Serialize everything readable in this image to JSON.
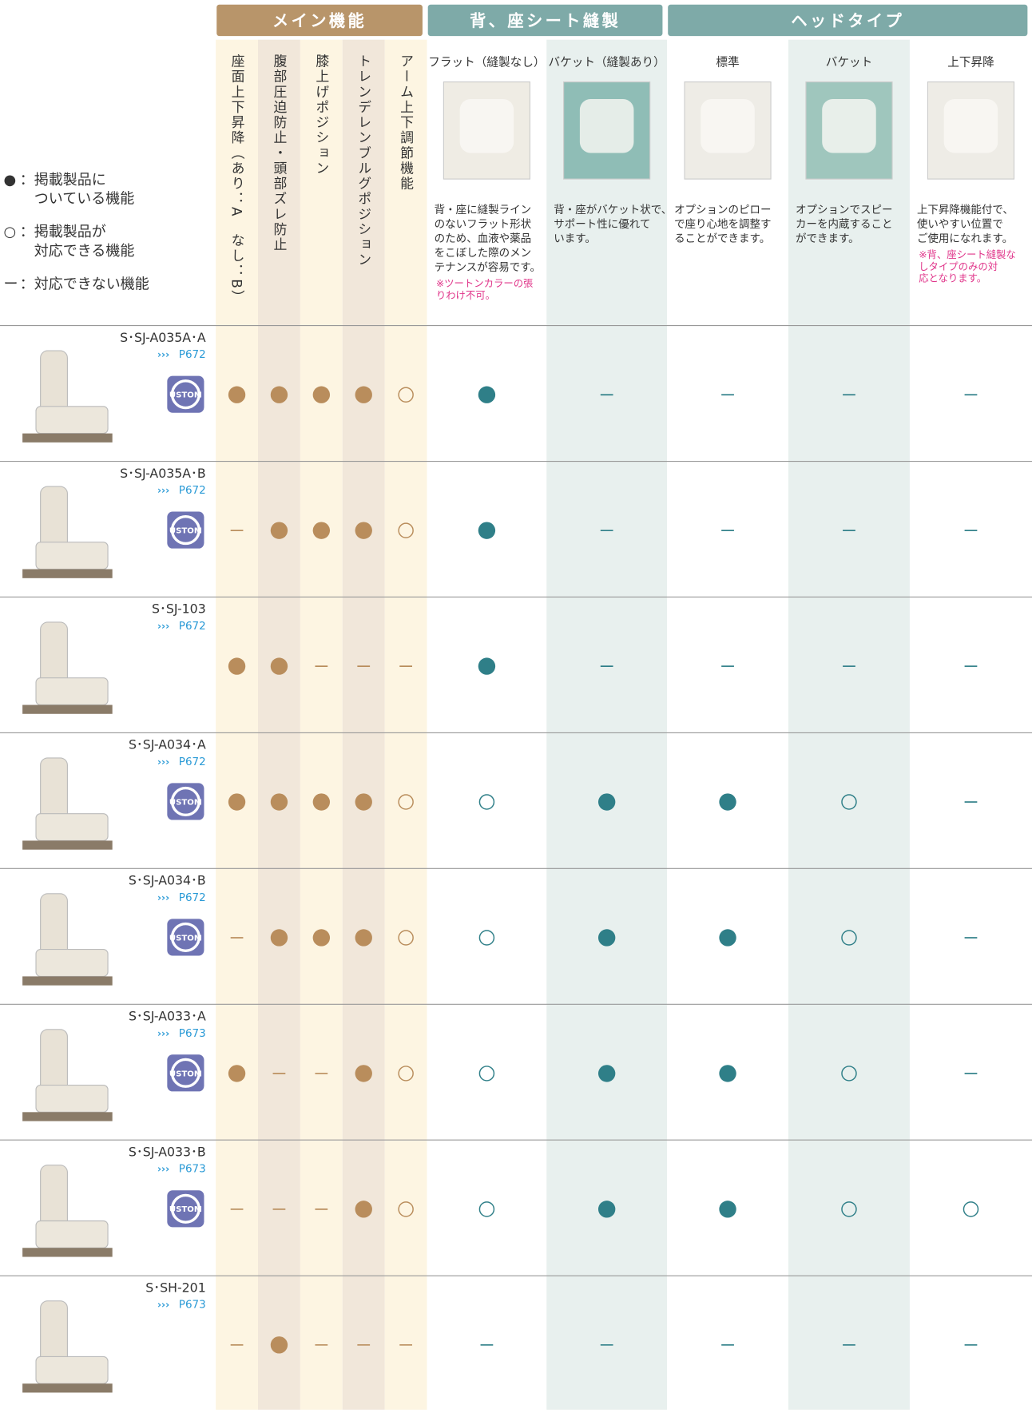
{
  "groups": [
    {
      "label": "メイン機能",
      "columns": [
        {
          "label": "座面上下昇降（あり：A　なし：B）"
        },
        {
          "label": "腹部圧迫防止・頭部ズレ防止"
        },
        {
          "label": "膝上げポジション"
        },
        {
          "label": "トレンデレンブルグポジション"
        },
        {
          "label": "アーム上下調節機能"
        }
      ]
    },
    {
      "label": "背、座シート縫製",
      "columns": [
        {
          "label": "フラット（縫製なし）",
          "description": [
            "背・座に縫製ライン",
            "のないフラット形状",
            "のため、血液や薬品",
            "をこぼした際のメン",
            "テナンスが容易です。"
          ],
          "note": [
            "※ツートンカラーの張",
            "りわけ不可。"
          ]
        },
        {
          "label": "バケット（縫製あり）",
          "description": [
            "背・座がバケット状で、",
            "サポート性に優れて",
            "います。"
          ]
        }
      ]
    },
    {
      "label": "ヘッドタイプ",
      "columns": [
        {
          "label": "標準",
          "description": [
            "オプションのピロー",
            "で座り心地を調整す",
            "ることができます。"
          ]
        },
        {
          "label": "バケット",
          "description": [
            "オプションでスピー",
            "カーを内蔵すること",
            "ができます。"
          ]
        },
        {
          "label": "上下昇降",
          "description": [
            "上下昇降機能付で、",
            "使いやすい位置で",
            "ご使用になれます。"
          ],
          "note": [
            "※背、座シート縫製な",
            "しタイプのみの対",
            "応となります。"
          ]
        }
      ]
    }
  ],
  "legend": [
    {
      "symbol": "●",
      "lines": [
        "：掲載製品に",
        "ついている機能"
      ]
    },
    {
      "symbol": "○",
      "lines": [
        "：掲載製品が",
        "対応できる機能"
      ]
    },
    {
      "symbol": "ー",
      "lines": [
        "：対応できない機能"
      ]
    }
  ],
  "rows": [
    {
      "name": "S･SJ-A035A･A",
      "page": "P672",
      "badge": "USTOM",
      "cells": [
        "●",
        "●",
        "●",
        "●",
        "○",
        "●",
        "ー",
        "ー",
        "ー",
        "ー"
      ]
    },
    {
      "name": "S･SJ-A035A･B",
      "page": "P672",
      "badge": "USTOM",
      "cells": [
        "ー",
        "●",
        "●",
        "●",
        "○",
        "●",
        "ー",
        "ー",
        "ー",
        "ー"
      ]
    },
    {
      "name": "S･SJ-103",
      "page": "P672",
      "cells": [
        "●",
        "●",
        "ー",
        "ー",
        "ー",
        "●",
        "ー",
        "ー",
        "ー",
        "ー"
      ]
    },
    {
      "name": "S･SJ-A034･A",
      "page": "P672",
      "badge": "USTOM",
      "cells": [
        "●",
        "●",
        "●",
        "●",
        "○",
        "○",
        "●",
        "●",
        "○",
        "ー"
      ]
    },
    {
      "name": "S･SJ-A034･B",
      "page": "P672",
      "badge": "USTOM",
      "cells": [
        "ー",
        "●",
        "●",
        "●",
        "○",
        "○",
        "●",
        "●",
        "○",
        "ー"
      ]
    },
    {
      "name": "S･SJ-A033･A",
      "page": "P673",
      "badge": "USTOM",
      "cells": [
        "●",
        "ー",
        "ー",
        "●",
        "○",
        "○",
        "●",
        "●",
        "○",
        "ー"
      ]
    },
    {
      "name": "S･SJ-A033･B",
      "page": "P673",
      "badge": "USTOM",
      "cells": [
        "ー",
        "ー",
        "ー",
        "●",
        "○",
        "○",
        "●",
        "●",
        "○",
        "○"
      ]
    },
    {
      "name": "S･SH-201",
      "page": "P673",
      "cells": [
        "ー",
        "●",
        "ー",
        "ー",
        "ー",
        "ー",
        "ー",
        "ー",
        "ー",
        "ー"
      ]
    }
  ]
}
